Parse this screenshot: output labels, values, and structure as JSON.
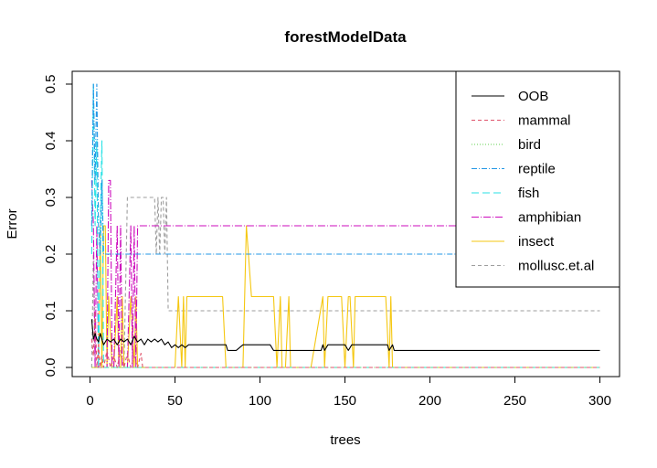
{
  "chart_data": {
    "type": "line",
    "title": "forestModelData",
    "xlabel": "trees",
    "ylabel": "Error",
    "xlim": [
      0,
      300
    ],
    "ylim": [
      0,
      0.5
    ],
    "xticks": [
      0,
      50,
      100,
      150,
      200,
      250,
      300
    ],
    "yticks": [
      0.0,
      0.1,
      0.2,
      0.3,
      0.4,
      0.5
    ],
    "xtick_labels": [
      "0",
      "50",
      "100",
      "150",
      "200",
      "250",
      "300"
    ],
    "ytick_labels": [
      "0.0",
      "0.1",
      "0.2",
      "0.3",
      "0.4",
      "0.5"
    ],
    "legend_position": "top-right",
    "series": [
      {
        "name": "OOB",
        "color": "#000000",
        "dash": "solid",
        "x": [
          1,
          2,
          3,
          4,
          5,
          6,
          8,
          10,
          12,
          14,
          16,
          18,
          20,
          22,
          24,
          26,
          28,
          30,
          32,
          34,
          36,
          38,
          40,
          42,
          44,
          46,
          48,
          50,
          52,
          54,
          56,
          58,
          60,
          70,
          80,
          81,
          86,
          90,
          91,
          93,
          94,
          100,
          106,
          108,
          110,
          120,
          130,
          136,
          137,
          138,
          140,
          150,
          152,
          154,
          156,
          160,
          170,
          175,
          176,
          178,
          179,
          200,
          250,
          300
        ],
        "y": [
          0.085,
          0.05,
          0.06,
          0.05,
          0.045,
          0.06,
          0.04,
          0.05,
          0.045,
          0.05,
          0.04,
          0.05,
          0.045,
          0.05,
          0.04,
          0.055,
          0.045,
          0.05,
          0.04,
          0.05,
          0.045,
          0.05,
          0.045,
          0.05,
          0.04,
          0.045,
          0.035,
          0.04,
          0.035,
          0.04,
          0.035,
          0.04,
          0.04,
          0.04,
          0.04,
          0.03,
          0.03,
          0.04,
          0.04,
          0.04,
          0.04,
          0.04,
          0.04,
          0.03,
          0.03,
          0.03,
          0.03,
          0.03,
          0.04,
          0.03,
          0.04,
          0.04,
          0.03,
          0.04,
          0.04,
          0.04,
          0.04,
          0.04,
          0.03,
          0.04,
          0.03,
          0.03,
          0.03,
          0.03
        ]
      },
      {
        "name": "mammal",
        "color": "#DF536B",
        "dash": "4,3",
        "x": [
          1,
          2,
          3,
          4,
          5,
          6,
          7,
          8,
          10,
          12,
          14,
          16,
          18,
          20,
          22,
          24,
          26,
          28,
          30,
          31,
          32,
          300
        ],
        "y": [
          0.05,
          0.02,
          0.1,
          0.0,
          0.04,
          0.0,
          0.02,
          0.0,
          0.03,
          0.0,
          0.02,
          0.0,
          0.03,
          0.0,
          0.025,
          0.0,
          0.02,
          0.0,
          0.025,
          0.0,
          0.0,
          0.0
        ]
      },
      {
        "name": "bird",
        "color": "#61D04F",
        "dash": "1,2",
        "x": [
          1,
          300
        ],
        "y": [
          0.0,
          0.0
        ]
      },
      {
        "name": "reptile",
        "color": "#2297E6",
        "dash": "6,2,1,2",
        "x": [
          1,
          2,
          3,
          4,
          5,
          6,
          7,
          8,
          9,
          10,
          300
        ],
        "y": [
          0.25,
          0.5,
          0.33,
          0.5,
          0.25,
          0.2,
          0.33,
          0.2,
          0.2,
          0.2,
          0.2
        ]
      },
      {
        "name": "fish",
        "color": "#28E2E5",
        "dash": "8,4",
        "x": [
          1,
          2,
          3,
          4,
          5,
          6,
          7,
          8,
          300
        ],
        "y": [
          0.2,
          0.5,
          0.25,
          0.4,
          0.0,
          0.25,
          0.4,
          0.0,
          0.0
        ]
      },
      {
        "name": "amphibian",
        "color": "#CD0BBC",
        "dash": "8,2,1,2",
        "x": [
          1,
          2,
          3,
          4,
          5,
          6,
          8,
          10,
          11,
          12,
          13,
          14,
          16,
          17,
          18,
          19,
          20,
          22,
          24,
          25,
          26,
          27,
          28,
          29,
          300
        ],
        "y": [
          0.33,
          0.25,
          0.0,
          0.25,
          0.0,
          0.0,
          0.0,
          0.0,
          0.33,
          0.33,
          0.0,
          0.0,
          0.25,
          0.0,
          0.25,
          0.0,
          0.0,
          0.0,
          0.25,
          0.0,
          0.25,
          0.0,
          0.25,
          0.25,
          0.25
        ]
      },
      {
        "name": "insect",
        "color": "#F5C710",
        "dash": "solid",
        "x": [
          1,
          5,
          6,
          7,
          8,
          9,
          10,
          11,
          13,
          14,
          16,
          17,
          18,
          19,
          20,
          22,
          24,
          26,
          27,
          28,
          29,
          50,
          52,
          54,
          55,
          56,
          57,
          58,
          78,
          80,
          82,
          90,
          92,
          95,
          100,
          108,
          110,
          112,
          113,
          115,
          117,
          118,
          119,
          130,
          137,
          138,
          140,
          141,
          148,
          150,
          152,
          153,
          155,
          156,
          157,
          158,
          170,
          174,
          176,
          177,
          178,
          300
        ],
        "y": [
          0.0,
          0.0,
          0.25,
          0.0,
          0.25,
          0.25,
          0.0,
          0.125,
          0.0,
          0.0,
          0.125,
          0.0,
          0.0,
          0.125,
          0.0,
          0.0,
          0.125,
          0.0,
          0.125,
          0.0,
          0.0,
          0.0,
          0.125,
          0.0,
          0.125,
          0.0,
          0.125,
          0.125,
          0.125,
          0.0,
          0.0,
          0.0,
          0.25,
          0.125,
          0.125,
          0.125,
          0.0,
          0.125,
          0.0,
          0.0,
          0.125,
          0.0,
          0.0,
          0.0,
          0.125,
          0.0,
          0.125,
          0.125,
          0.125,
          0.0,
          0.125,
          0.125,
          0.0,
          0.125,
          0.125,
          0.125,
          0.125,
          0.125,
          0.0,
          0.125,
          0.0,
          0.0
        ]
      },
      {
        "name": "mollusc.et.al",
        "color": "#9E9E9E",
        "dash": "4,3",
        "x": [
          1,
          2,
          3,
          4,
          20,
          22,
          23,
          38,
          39,
          40,
          41,
          42,
          43,
          44,
          45,
          46,
          47,
          48,
          300
        ],
        "y": [
          0.0,
          0.2,
          0.0,
          0.0,
          0.0,
          0.3,
          0.3,
          0.3,
          0.2,
          0.3,
          0.2,
          0.3,
          0.3,
          0.2,
          0.3,
          0.1,
          0.1,
          0.1,
          0.1
        ]
      }
    ]
  }
}
